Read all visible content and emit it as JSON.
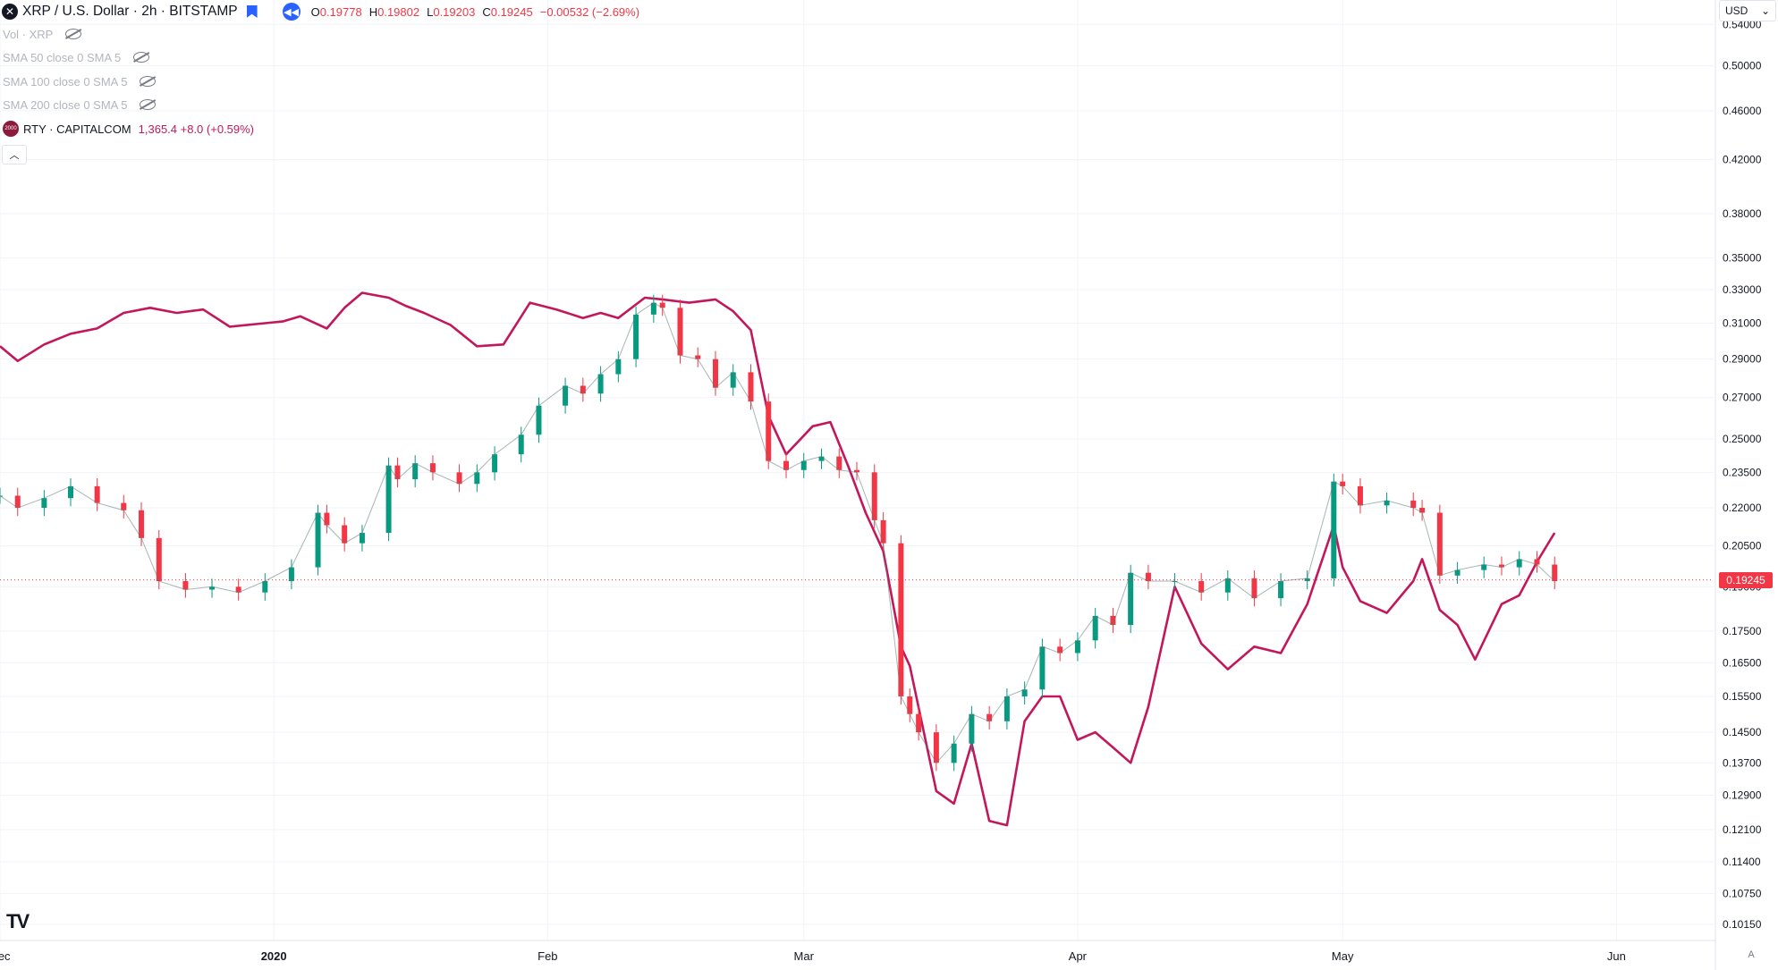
{
  "header": {
    "title": "XRP / U.S. Dollar · 2h · BITSTAMP",
    "ohlc": [
      {
        "k": "O",
        "v": "0.19778"
      },
      {
        "k": "H",
        "v": "0.19802"
      },
      {
        "k": "L",
        "v": "0.19203"
      },
      {
        "k": "C",
        "v": "0.19245"
      }
    ],
    "change": "−0.00532 (−2.69%)"
  },
  "indicators": [
    {
      "label": "Vol · XRP"
    },
    {
      "label": "SMA 50 close 0 SMA 5"
    },
    {
      "label": "SMA 100 close 0 SMA 5"
    },
    {
      "label": "SMA 200 close 0 SMA 5"
    }
  ],
  "compare": {
    "name": "RTY · CAPITALCOM",
    "value": "1,365.4 +8.0 (+0.59%)",
    "logo_text": "2000"
  },
  "currency": "USD",
  "last_price_label": "0.19245",
  "auto_label": "A",
  "colors": {
    "up": "#089981",
    "down": "#f23645",
    "compare": "#c2185b",
    "grid": "#f0f3fa",
    "axis_text": "#131722"
  },
  "chart_data": {
    "type": "line",
    "title": "XRP / U.S. Dollar · 2h · BITSTAMP",
    "y_scale": "log",
    "ylim": [
      0.0985,
      0.565
    ],
    "y_ticks": [
      "0.54000",
      "0.50000",
      "0.46000",
      "0.42000",
      "0.38000",
      "0.35000",
      "0.33000",
      "0.31000",
      "0.29000",
      "0.27000",
      "0.25000",
      "0.23500",
      "0.22000",
      "0.20500",
      "0.19000",
      "0.17500",
      "0.16500",
      "0.15500",
      "0.14500",
      "0.13700",
      "0.12900",
      "0.12100",
      "0.11400",
      "0.10750",
      "0.10150"
    ],
    "x_ticks": [
      "Dec",
      "2020",
      "Feb",
      "Mar",
      "Apr",
      "May",
      "Jun"
    ],
    "xlim": [
      "2019-12-01",
      "2020-06-12"
    ],
    "x_tick_dates": [
      "2019-12-01",
      "2020-01-01",
      "2020-02-01",
      "2020-03-01",
      "2020-04-01",
      "2020-05-01",
      "2020-06-01"
    ],
    "last_price": 0.19245,
    "series": [
      {
        "name": "XRP / U.S. Dollar",
        "kind": "candles",
        "x": [
          "2019-12-01",
          "2019-12-03",
          "2019-12-06",
          "2019-12-09",
          "2019-12-12",
          "2019-12-15",
          "2019-12-17",
          "2019-12-19",
          "2019-12-22",
          "2019-12-25",
          "2019-12-28",
          "2019-12-31",
          "2020-01-03",
          "2020-01-06",
          "2020-01-07",
          "2020-01-09",
          "2020-01-11",
          "2020-01-14",
          "2020-01-15",
          "2020-01-17",
          "2020-01-19",
          "2020-01-22",
          "2020-01-24",
          "2020-01-26",
          "2020-01-29",
          "2020-01-31",
          "2020-02-03",
          "2020-02-05",
          "2020-02-07",
          "2020-02-09",
          "2020-02-11",
          "2020-02-13",
          "2020-02-14",
          "2020-02-16",
          "2020-02-18",
          "2020-02-20",
          "2020-02-22",
          "2020-02-24",
          "2020-02-26",
          "2020-02-28",
          "2020-03-01",
          "2020-03-03",
          "2020-03-05",
          "2020-03-07",
          "2020-03-09",
          "2020-03-10",
          "2020-03-12",
          "2020-03-13",
          "2020-03-14",
          "2020-03-16",
          "2020-03-18",
          "2020-03-20",
          "2020-03-22",
          "2020-03-24",
          "2020-03-26",
          "2020-03-28",
          "2020-03-30",
          "2020-04-01",
          "2020-04-03",
          "2020-04-05",
          "2020-04-07",
          "2020-04-09",
          "2020-04-12",
          "2020-04-15",
          "2020-04-18",
          "2020-04-21",
          "2020-04-24",
          "2020-04-27",
          "2020-04-30",
          "2020-05-01",
          "2020-05-03",
          "2020-05-06",
          "2020-05-09",
          "2020-05-10",
          "2020-05-12",
          "2020-05-14",
          "2020-05-17",
          "2020-05-19",
          "2020-05-21",
          "2020-05-23",
          "2020-05-25"
        ],
        "values": [
          0.225,
          0.22,
          0.224,
          0.229,
          0.222,
          0.219,
          0.208,
          0.192,
          0.189,
          0.19,
          0.188,
          0.192,
          0.197,
          0.218,
          0.213,
          0.206,
          0.21,
          0.238,
          0.232,
          0.239,
          0.235,
          0.23,
          0.235,
          0.243,
          0.252,
          0.266,
          0.276,
          0.272,
          0.282,
          0.29,
          0.315,
          0.322,
          0.319,
          0.292,
          0.29,
          0.275,
          0.283,
          0.268,
          0.24,
          0.236,
          0.24,
          0.242,
          0.236,
          0.235,
          0.215,
          0.206,
          0.155,
          0.15,
          0.145,
          0.137,
          0.142,
          0.15,
          0.148,
          0.155,
          0.157,
          0.17,
          0.168,
          0.172,
          0.18,
          0.177,
          0.195,
          0.192,
          0.192,
          0.188,
          0.193,
          0.186,
          0.192,
          0.193,
          0.231,
          0.229,
          0.221,
          0.223,
          0.22,
          0.218,
          0.194,
          0.196,
          0.198,
          0.197,
          0.2,
          0.198,
          0.192
        ]
      },
      {
        "name": "RTY · CAPITALCOM",
        "kind": "line",
        "x": [
          "2019-12-01",
          "2019-12-03",
          "2019-12-06",
          "2019-12-09",
          "2019-12-12",
          "2019-12-15",
          "2019-12-18",
          "2019-12-21",
          "2019-12-24",
          "2019-12-27",
          "2019-12-31",
          "2020-01-02",
          "2020-01-04",
          "2020-01-07",
          "2020-01-09",
          "2020-01-11",
          "2020-01-14",
          "2020-01-16",
          "2020-01-18",
          "2020-01-21",
          "2020-01-24",
          "2020-01-27",
          "2020-01-30",
          "2020-02-02",
          "2020-02-05",
          "2020-02-07",
          "2020-02-09",
          "2020-02-12",
          "2020-02-14",
          "2020-02-17",
          "2020-02-20",
          "2020-02-22",
          "2020-02-24",
          "2020-02-26",
          "2020-02-28",
          "2020-03-02",
          "2020-03-04",
          "2020-03-06",
          "2020-03-08",
          "2020-03-10",
          "2020-03-12",
          "2020-03-13",
          "2020-03-16",
          "2020-03-18",
          "2020-03-20",
          "2020-03-22",
          "2020-03-24",
          "2020-03-26",
          "2020-03-28",
          "2020-03-30",
          "2020-04-01",
          "2020-04-03",
          "2020-04-05",
          "2020-04-07",
          "2020-04-09",
          "2020-04-12",
          "2020-04-15",
          "2020-04-18",
          "2020-04-21",
          "2020-04-24",
          "2020-04-27",
          "2020-04-30",
          "2020-05-01",
          "2020-05-03",
          "2020-05-06",
          "2020-05-09",
          "2020-05-10",
          "2020-05-12",
          "2020-05-14",
          "2020-05-16",
          "2020-05-19",
          "2020-05-21",
          "2020-05-23",
          "2020-05-25"
        ],
        "values": [
          0.297,
          0.289,
          0.298,
          0.304,
          0.307,
          0.316,
          0.319,
          0.316,
          0.318,
          0.308,
          0.31,
          0.311,
          0.314,
          0.307,
          0.319,
          0.328,
          0.325,
          0.32,
          0.316,
          0.309,
          0.297,
          0.298,
          0.322,
          0.318,
          0.313,
          0.316,
          0.313,
          0.325,
          0.324,
          0.322,
          0.324,
          0.317,
          0.306,
          0.261,
          0.243,
          0.256,
          0.258,
          0.238,
          0.218,
          0.203,
          0.17,
          0.164,
          0.13,
          0.127,
          0.142,
          0.123,
          0.122,
          0.148,
          0.155,
          0.155,
          0.143,
          0.145,
          0.141,
          0.137,
          0.152,
          0.19,
          0.171,
          0.163,
          0.17,
          0.168,
          0.184,
          0.213,
          0.197,
          0.185,
          0.181,
          0.192,
          0.2,
          0.182,
          0.177,
          0.166,
          0.184,
          0.187,
          0.199,
          0.21
        ]
      }
    ]
  }
}
